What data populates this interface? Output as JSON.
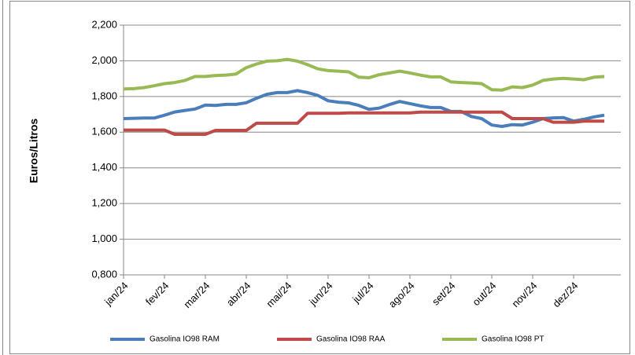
{
  "chart_data": {
    "type": "line",
    "y_label": "Euros/Litros",
    "categories": [
      "jan/24",
      null,
      null,
      null,
      "fev/24",
      null,
      null,
      null,
      "mar/24",
      null,
      null,
      null,
      "abr/24",
      null,
      null,
      null,
      "mai/24",
      null,
      null,
      null,
      "jun/24",
      null,
      null,
      null,
      "jul/24",
      null,
      null,
      null,
      "ago/24",
      null,
      null,
      null,
      "set/24",
      null,
      null,
      null,
      "out/24",
      null,
      null,
      null,
      "nov/24",
      null,
      null,
      null,
      "dez/24",
      null,
      null,
      null
    ],
    "series": [
      {
        "name": "Gasolina IO98 RAM",
        "color": "#4a7ebb",
        "values": [
          1.676,
          1.678,
          1.679,
          1.679,
          1.695,
          1.713,
          1.722,
          1.73,
          1.752,
          1.75,
          1.756,
          1.756,
          1.765,
          1.79,
          1.812,
          1.822,
          1.822,
          1.833,
          1.822,
          1.806,
          1.776,
          1.768,
          1.764,
          1.75,
          1.728,
          1.735,
          1.755,
          1.772,
          1.76,
          1.748,
          1.738,
          1.738,
          1.716,
          1.716,
          1.688,
          1.676,
          1.64,
          1.632,
          1.642,
          1.64,
          1.656,
          1.676,
          1.68,
          1.682,
          1.662,
          1.672,
          1.686,
          1.695
        ]
      },
      {
        "name": "Gasolina IO98 RAA",
        "color": "#be4b48",
        "values": [
          1.612,
          1.612,
          1.612,
          1.612,
          1.612,
          1.588,
          1.588,
          1.588,
          1.588,
          1.61,
          1.61,
          1.61,
          1.61,
          1.65,
          1.65,
          1.65,
          1.65,
          1.65,
          1.706,
          1.706,
          1.706,
          1.706,
          1.708,
          1.708,
          1.708,
          1.708,
          1.708,
          1.708,
          1.708,
          1.712,
          1.712,
          1.712,
          1.712,
          1.712,
          1.712,
          1.712,
          1.712,
          1.712,
          1.676,
          1.676,
          1.676,
          1.676,
          1.656,
          1.656,
          1.656,
          1.662,
          1.662,
          1.662
        ]
      },
      {
        "name": "Gasolina IO98 PT",
        "color": "#98b954",
        "values": [
          1.842,
          1.844,
          1.85,
          1.86,
          1.872,
          1.878,
          1.89,
          1.912,
          1.912,
          1.918,
          1.92,
          1.926,
          1.962,
          1.982,
          1.998,
          2.0,
          2.008,
          1.998,
          1.978,
          1.955,
          1.945,
          1.942,
          1.938,
          1.908,
          1.905,
          1.922,
          1.932,
          1.942,
          1.932,
          1.92,
          1.91,
          1.91,
          1.882,
          1.878,
          1.876,
          1.872,
          1.838,
          1.836,
          1.854,
          1.85,
          1.864,
          1.89,
          1.898,
          1.902,
          1.898,
          1.894,
          1.908,
          1.912
        ]
      }
    ],
    "ylim": [
      0.8,
      2.2
    ],
    "yticks": [
      {
        "value": 0.8,
        "label": "0,800"
      },
      {
        "value": 1.0,
        "label": "1,000"
      },
      {
        "value": 1.2,
        "label": "1,200"
      },
      {
        "value": 1.4,
        "label": "1,400"
      },
      {
        "value": 1.6,
        "label": "1,600"
      },
      {
        "value": 1.8,
        "label": "1,800"
      },
      {
        "value": 2.0,
        "label": "2,000"
      },
      {
        "value": 2.2,
        "label": "2,200"
      }
    ],
    "grid": true,
    "legend": "bottom"
  }
}
